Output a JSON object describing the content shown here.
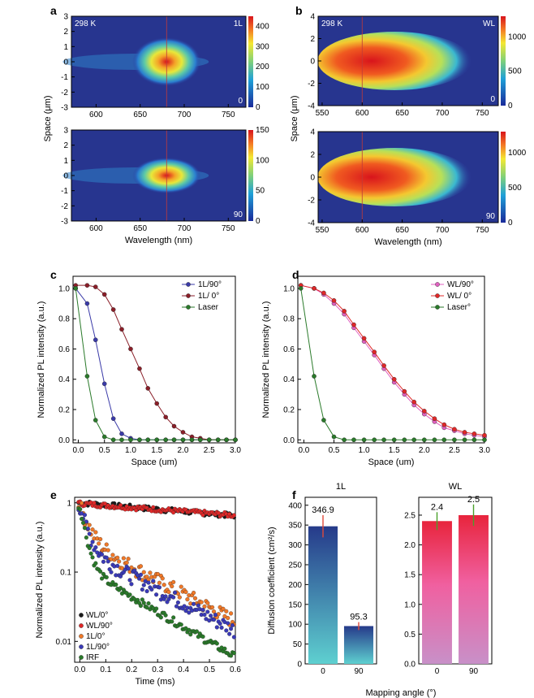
{
  "panel_labels": [
    "a",
    "b",
    "c",
    "d",
    "e",
    "f"
  ],
  "chart_data": [
    {
      "id": "a-top",
      "type": "heatmap",
      "xlim": [
        572,
        770
      ],
      "ylim": [
        -3,
        3
      ],
      "xticks": [
        600,
        650,
        700,
        750
      ],
      "yticks": [
        -3,
        -2,
        -1,
        0,
        1,
        2,
        3
      ],
      "corner_labels": [
        "298 K",
        "1L",
        "0"
      ],
      "colorbar": {
        "range": [
          0,
          450
        ],
        "ticks": [
          0,
          100,
          200,
          300,
          400
        ]
      },
      "peak_wavelength": 680
    },
    {
      "id": "a-bottom",
      "type": "heatmap",
      "xlim": [
        572,
        770
      ],
      "ylim": [
        -3,
        3
      ],
      "xticks": [
        600,
        650,
        700,
        750
      ],
      "yticks": [
        -3,
        -2,
        -1,
        0,
        1,
        2,
        3
      ],
      "corner_labels": [
        "90"
      ],
      "colorbar": {
        "range": [
          0,
          150
        ],
        "ticks": [
          0,
          50,
          100,
          150
        ]
      },
      "peak_wavelength": 680,
      "xlabel": "Wavelength (nm)"
    },
    {
      "id": "b-top",
      "type": "heatmap",
      "xlim": [
        545,
        770
      ],
      "ylim": [
        -4,
        4
      ],
      "xticks": [
        550,
        600,
        650,
        700,
        750
      ],
      "yticks": [
        -4,
        -2,
        0,
        2,
        4
      ],
      "corner_labels": [
        "298 K",
        "WL",
        "0"
      ],
      "colorbar": {
        "range": [
          0,
          1300
        ],
        "ticks": [
          0,
          500,
          1000
        ]
      },
      "peak_wavelength": 600
    },
    {
      "id": "b-bottom",
      "type": "heatmap",
      "xlim": [
        545,
        770
      ],
      "ylim": [
        -4,
        4
      ],
      "xticks": [
        550,
        600,
        650,
        700,
        750
      ],
      "yticks": [
        -4,
        -2,
        0,
        2,
        4
      ],
      "corner_labels": [
        "90"
      ],
      "colorbar": {
        "range": [
          0,
          1300
        ],
        "ticks": [
          0,
          500,
          1000
        ]
      },
      "peak_wavelength": 600,
      "xlabel": "Wavelength (nm)"
    },
    {
      "id": "ab-ylabel",
      "ylabel": "Space (μm)"
    },
    {
      "id": "c",
      "type": "line",
      "xlim": [
        -0.1,
        3.0
      ],
      "ylim": [
        -0.02,
        1.08
      ],
      "xticks": [
        0.0,
        0.5,
        1.0,
        1.5,
        2.0,
        2.5,
        3.0
      ],
      "yticks": [
        0.0,
        0.2,
        0.4,
        0.6,
        0.8,
        1.0
      ],
      "xlabel": "Space (um)",
      "ylabel": "Normalized PL intensity (a.u.)",
      "legend": "top-right",
      "x": [
        -0.05,
        0.17,
        0.33,
        0.5,
        0.67,
        0.83,
        1.0,
        1.17,
        1.33,
        1.5,
        1.67,
        1.83,
        2.0,
        2.17,
        2.33,
        2.5,
        2.67,
        2.83,
        3.0
      ],
      "series": [
        {
          "name": "1L/90°",
          "color": "#3a3aa8",
          "values": [
            1.0,
            0.9,
            0.66,
            0.37,
            0.14,
            0.04,
            0.01,
            0.0,
            0.0,
            0.0,
            0.0,
            0.0,
            0.0,
            0.0,
            0.0,
            0.0,
            0.0,
            0.0,
            0.0
          ]
        },
        {
          "name": "1L/ 0°",
          "color": "#8a1e28",
          "values": [
            1.02,
            1.02,
            1.01,
            0.96,
            0.86,
            0.73,
            0.6,
            0.47,
            0.34,
            0.24,
            0.15,
            0.09,
            0.05,
            0.02,
            0.01,
            0.0,
            0.0,
            0.0,
            0.0
          ]
        },
        {
          "name": "Laser",
          "color": "#2a7a2a",
          "values": [
            1.0,
            0.42,
            0.13,
            0.02,
            0.0,
            0.0,
            0.0,
            0.0,
            0.0,
            0.0,
            0.0,
            0.0,
            0.0,
            0.0,
            0.0,
            0.0,
            0.0,
            0.0,
            0.0
          ]
        }
      ]
    },
    {
      "id": "d",
      "type": "line",
      "xlim": [
        -0.1,
        3.0
      ],
      "ylim": [
        -0.02,
        1.08
      ],
      "xticks": [
        0.0,
        0.5,
        1.0,
        1.5,
        2.0,
        2.5,
        3.0
      ],
      "yticks": [
        0.0,
        0.2,
        0.4,
        0.6,
        0.8,
        1.0
      ],
      "xlabel": "Space (um)",
      "ylabel": "Normalized PL intensity (a.u.)",
      "legend": "top-right",
      "x": [
        -0.05,
        0.17,
        0.33,
        0.5,
        0.67,
        0.83,
        1.0,
        1.17,
        1.33,
        1.5,
        1.67,
        1.83,
        2.0,
        2.17,
        2.33,
        2.5,
        2.67,
        2.83,
        3.0
      ],
      "series": [
        {
          "name": "WL/90°",
          "color": "#e060c0",
          "values": [
            1.02,
            1.0,
            0.96,
            0.9,
            0.83,
            0.74,
            0.65,
            0.56,
            0.47,
            0.38,
            0.3,
            0.23,
            0.17,
            0.12,
            0.08,
            0.06,
            0.04,
            0.03,
            0.02
          ]
        },
        {
          "name": "WL/ 0°",
          "color": "#e02828",
          "values": [
            1.02,
            1.0,
            0.97,
            0.92,
            0.85,
            0.76,
            0.67,
            0.58,
            0.49,
            0.4,
            0.32,
            0.25,
            0.19,
            0.14,
            0.1,
            0.07,
            0.05,
            0.04,
            0.03
          ]
        },
        {
          "name": "Laser°",
          "color": "#2a7a2a",
          "values": [
            1.0,
            0.42,
            0.13,
            0.02,
            0.0,
            0.0,
            0.0,
            0.0,
            0.0,
            0.0,
            0.0,
            0.0,
            0.0,
            0.0,
            0.0,
            0.0,
            0.0,
            0.0,
            0.0
          ]
        }
      ]
    },
    {
      "id": "e",
      "type": "scatter",
      "yscale": "log",
      "xlim": [
        -0.02,
        0.6
      ],
      "ylim": [
        0.005,
        1.2
      ],
      "xticks": [
        0.0,
        0.1,
        0.2,
        0.3,
        0.4,
        0.5,
        0.6
      ],
      "yticks": [
        0.01,
        0.1,
        1
      ],
      "xlabel": "Time (ms)",
      "ylabel": "Normalized PL intensity (a.u.)",
      "legend": "bottom-left",
      "series": [
        {
          "name": "WL/0°",
          "color": "#1a1a1a",
          "start": 1.0,
          "tau": 1.4,
          "floor": 0.0,
          "noise": 0.08
        },
        {
          "name": "WL/90°",
          "color": "#e02828",
          "start": 0.98,
          "tau": 1.5,
          "floor": 0.0,
          "noise": 0.08
        },
        {
          "name": "1L/0°",
          "color": "#f07828",
          "start": 0.95,
          "fast_amp": 0.65,
          "fast_tau": 0.03,
          "slow_amp": 0.3,
          "slow_tau": 0.22,
          "noise": 0.25
        },
        {
          "name": "1L/90°",
          "color": "#3a3ab8",
          "start": 0.9,
          "fast_amp": 0.72,
          "fast_tau": 0.025,
          "slow_amp": 0.22,
          "slow_tau": 0.22,
          "noise": 0.25
        },
        {
          "name": "IRF",
          "color": "#2a7a2a",
          "start": 0.85,
          "fast_amp": 0.78,
          "fast_tau": 0.02,
          "slow_amp": 0.12,
          "slow_tau": 0.2,
          "noise": 0.12
        }
      ]
    },
    {
      "id": "f-1L",
      "type": "bar",
      "title": "1L",
      "categories": [
        "0",
        "90"
      ],
      "values": [
        346.9,
        95.3
      ],
      "errors": [
        28,
        10
      ],
      "value_labels": [
        "346.9",
        "95.3"
      ],
      "ylim": [
        0,
        420
      ],
      "yticks": [
        0,
        50,
        100,
        150,
        200,
        250,
        300,
        350,
        400
      ],
      "ylabel": "Diffusion coefficient (cm²/s)",
      "color": "navy-to-teal gradient"
    },
    {
      "id": "f-WL",
      "type": "bar",
      "title": "WL",
      "categories": [
        "0",
        "90"
      ],
      "values": [
        2.4,
        2.5
      ],
      "errors": [
        0.15,
        0.18
      ],
      "value_labels": [
        "2.4",
        "2.5"
      ],
      "ylim": [
        0,
        2.8
      ],
      "yticks": [
        0.0,
        0.5,
        1.0,
        1.5,
        2.0,
        2.5
      ],
      "color": "red-to-pink gradient",
      "xlabel": "Mapping angle (°)"
    }
  ]
}
